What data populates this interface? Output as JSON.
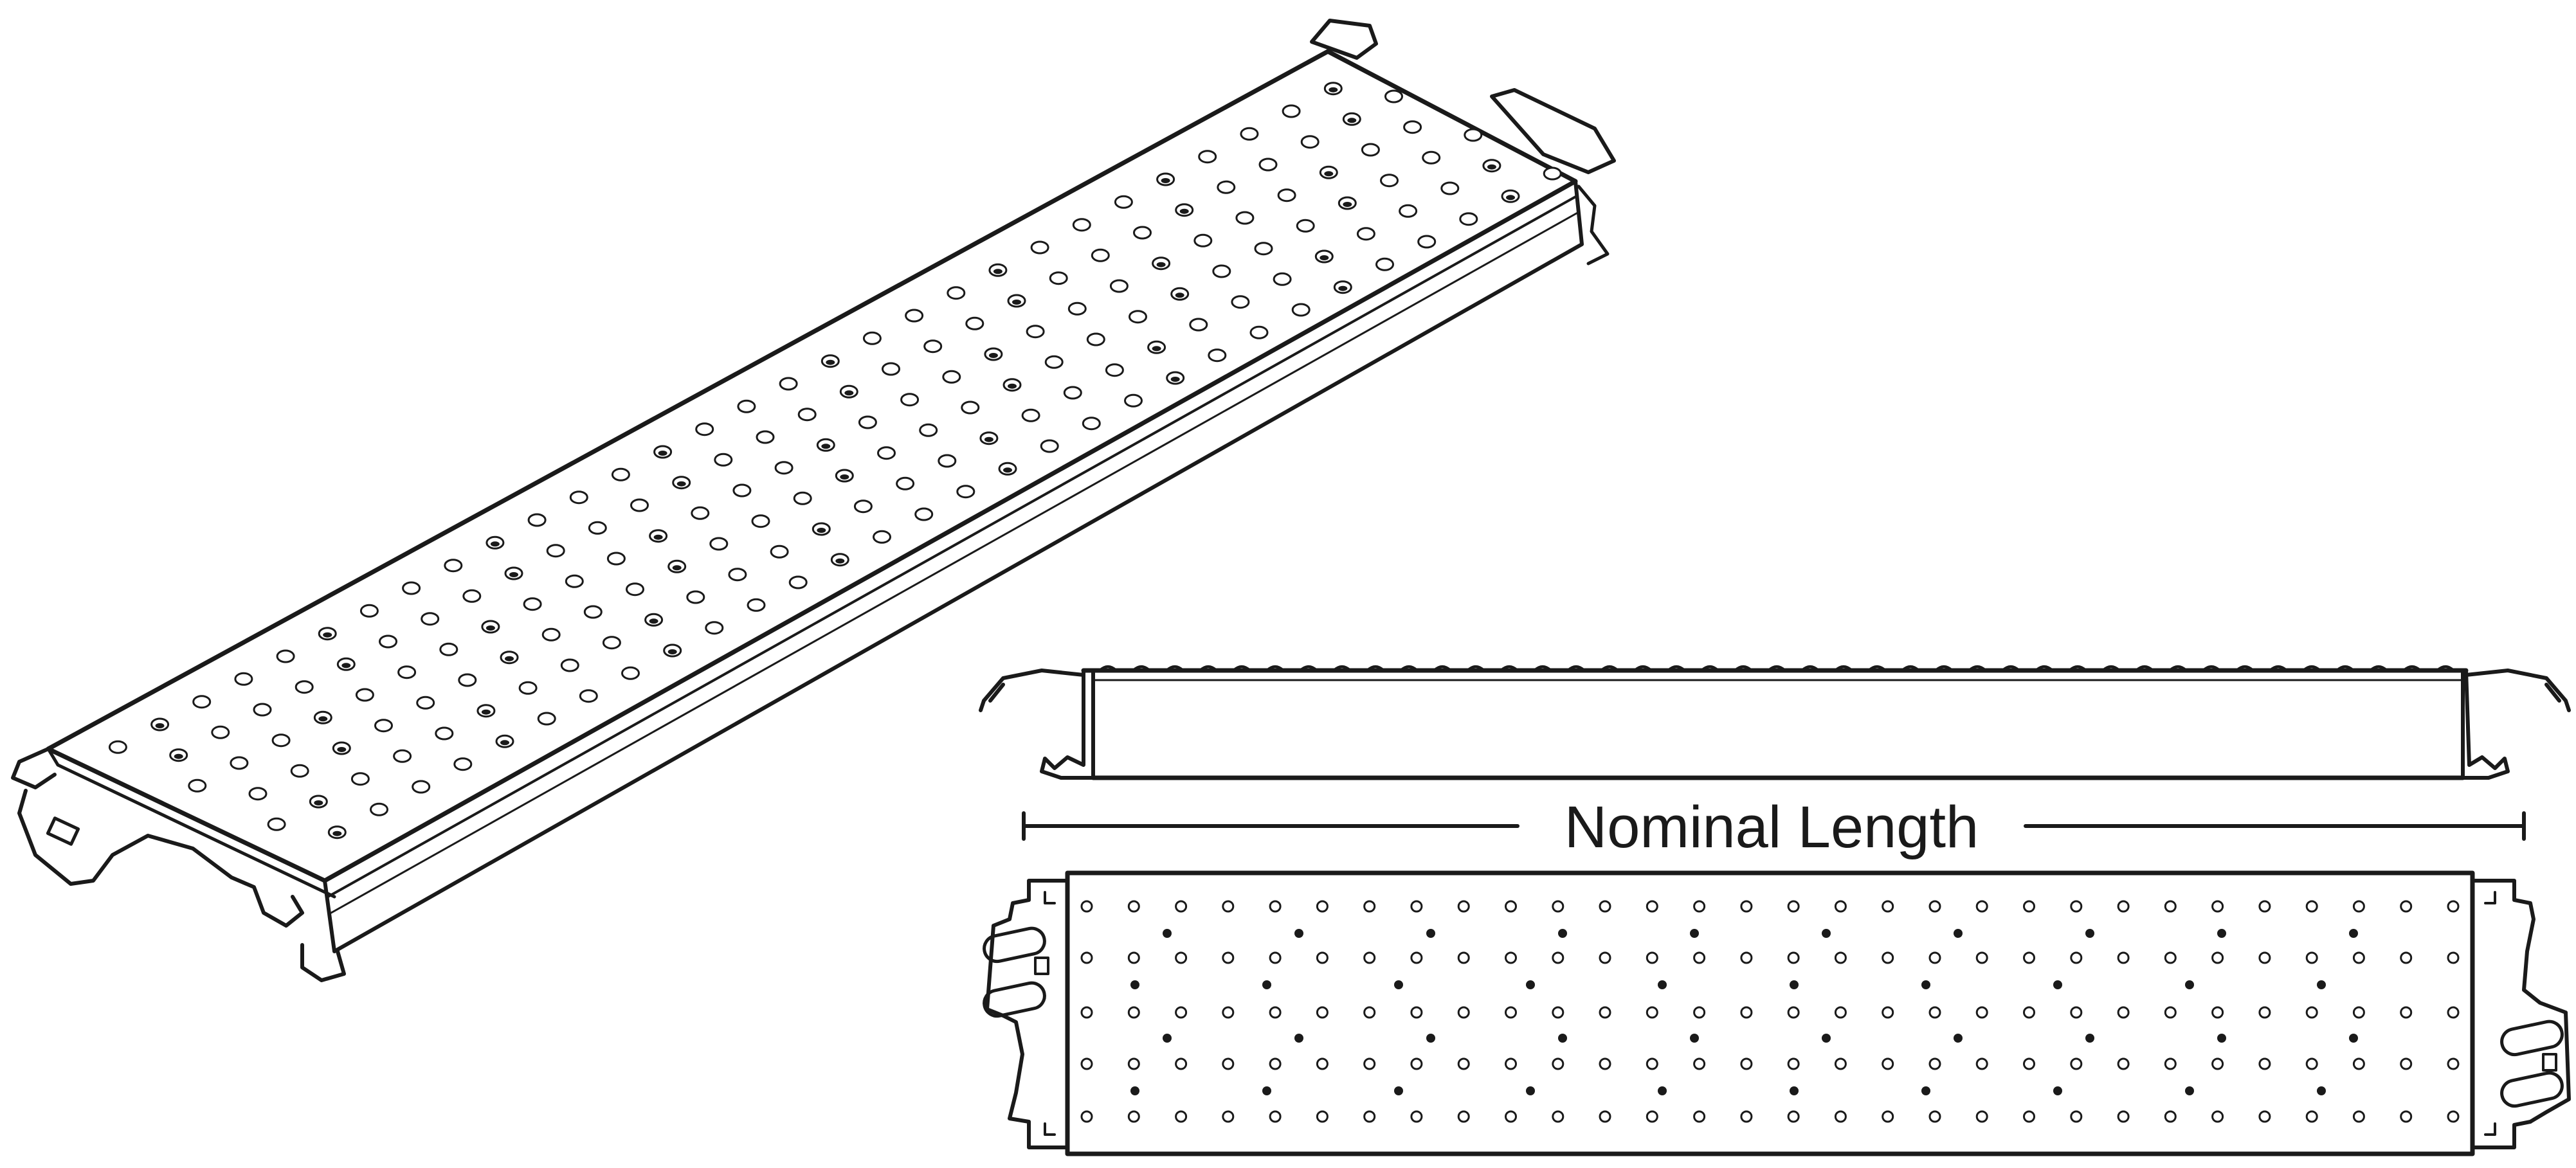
{
  "diagram": {
    "dimension_label": "Nominal Length",
    "colors": {
      "ink": "#1a1a1a",
      "background": "#ffffff"
    },
    "views": [
      "isometric-view",
      "side-elevation-view",
      "top-plan-view"
    ]
  }
}
